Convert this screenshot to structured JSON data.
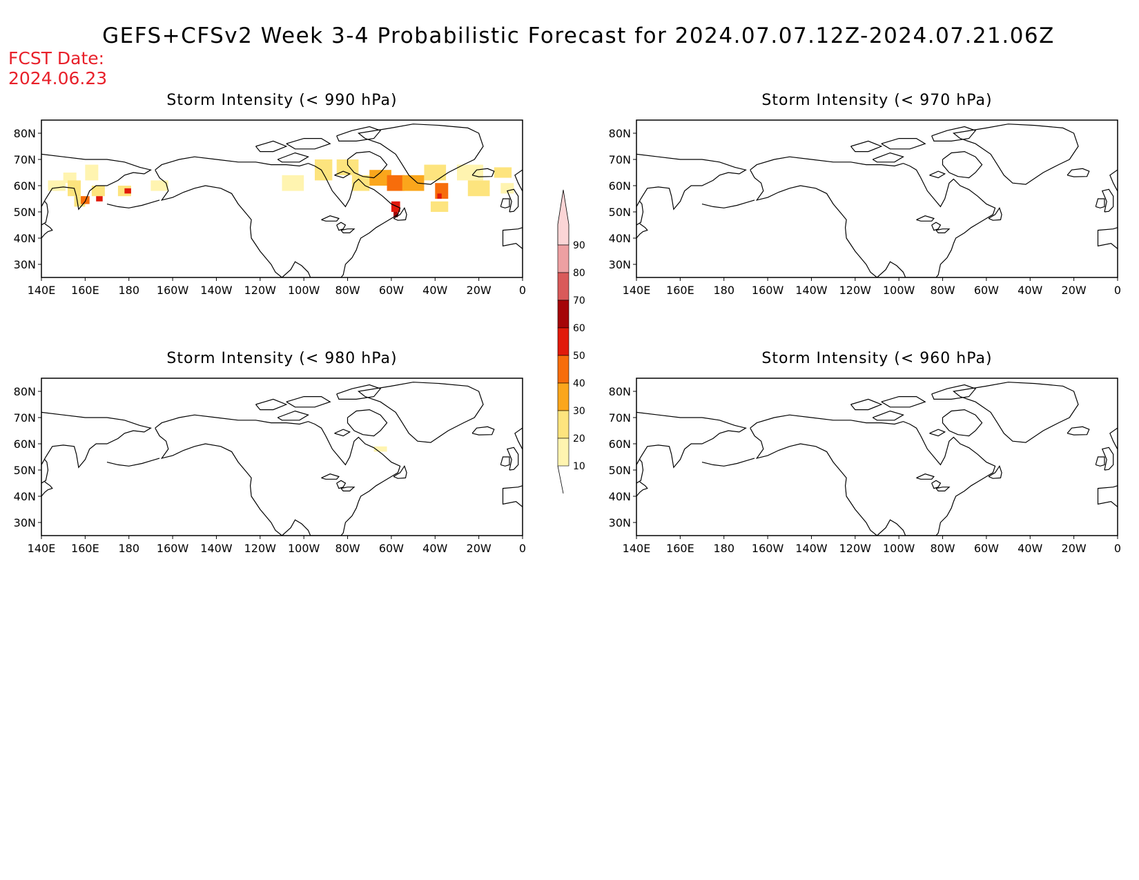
{
  "title": "GEFS+CFSv2 Week 3-4 Probabilistic Forecast for 2024.07.07.12Z-2024.07.21.06Z",
  "fcst_label": "FCST Date:",
  "fcst_date": "2024.06.23",
  "colors": {
    "fcst_text": "#e8202a",
    "map_line": "#000000",
    "scale": [
      "#fff4b0",
      "#fde47e",
      "#fba61c",
      "#f76d0b",
      "#e11a0a",
      "#a50508",
      "#d95a5a",
      "#eda0a2",
      "#fbd5d6"
    ]
  },
  "lon_ticks": [
    "140E",
    "160E",
    "180",
    "160W",
    "140W",
    "120W",
    "100W",
    "80W",
    "60W",
    "40W",
    "20W",
    "0"
  ],
  "lat_ticks": [
    "80N",
    "70N",
    "60N",
    "50N",
    "40N",
    "30N"
  ],
  "colorbar": {
    "levels": [
      "10",
      "20",
      "30",
      "40",
      "50",
      "60",
      "70",
      "80",
      "90"
    ]
  },
  "panels": [
    {
      "id": "990",
      "title": "Storm Intensity (< 990 hPa)",
      "has_shading": true,
      "shaded_cells": [
        {
          "lon": 143,
          "lat": 58,
          "dlon": 8,
          "dlat": 4,
          "level": 0
        },
        {
          "lon": 150,
          "lat": 61,
          "dlon": 6,
          "dlat": 4,
          "level": 0
        },
        {
          "lon": 152,
          "lat": 56,
          "dlon": 6,
          "dlat": 6,
          "level": 1
        },
        {
          "lon": 155,
          "lat": 52,
          "dlon": 5,
          "dlat": 4,
          "level": 1
        },
        {
          "lon": 158,
          "lat": 53,
          "dlon": 4,
          "dlat": 3,
          "level": 3
        },
        {
          "lon": 160,
          "lat": 62,
          "dlon": 6,
          "dlat": 6,
          "level": 0
        },
        {
          "lon": 163,
          "lat": 56,
          "dlon": 6,
          "dlat": 4,
          "level": 1
        },
        {
          "lon": 165,
          "lat": 54,
          "dlon": 3,
          "dlat": 2,
          "level": 4
        },
        {
          "lon": 175,
          "lat": 56,
          "dlon": 6,
          "dlat": 4,
          "level": 1
        },
        {
          "lon": 178,
          "lat": 57,
          "dlon": 3,
          "dlat": 2,
          "level": 4
        },
        {
          "lon": 190,
          "lat": 58,
          "dlon": 8,
          "dlat": 4,
          "level": 0
        },
        {
          "lon": 250,
          "lat": 58,
          "dlon": 10,
          "dlat": 6,
          "level": 0
        },
        {
          "lon": 265,
          "lat": 62,
          "dlon": 8,
          "dlat": 8,
          "level": 1
        },
        {
          "lon": 275,
          "lat": 64,
          "dlon": 10,
          "dlat": 6,
          "level": 1
        },
        {
          "lon": 282,
          "lat": 58,
          "dlon": 8,
          "dlat": 6,
          "level": 1
        },
        {
          "lon": 290,
          "lat": 60,
          "dlon": 10,
          "dlat": 6,
          "level": 2
        },
        {
          "lon": 298,
          "lat": 58,
          "dlon": 8,
          "dlat": 6,
          "level": 3
        },
        {
          "lon": 300,
          "lat": 50,
          "dlon": 4,
          "dlat": 4,
          "level": 4
        },
        {
          "lon": 301,
          "lat": 48,
          "dlon": 2,
          "dlat": 2,
          "level": 5
        },
        {
          "lon": 305,
          "lat": 58,
          "dlon": 10,
          "dlat": 6,
          "level": 2
        },
        {
          "lon": 315,
          "lat": 62,
          "dlon": 10,
          "dlat": 6,
          "level": 1
        },
        {
          "lon": 320,
          "lat": 55,
          "dlon": 6,
          "dlat": 6,
          "level": 3
        },
        {
          "lon": 321,
          "lat": 55,
          "dlon": 2,
          "dlat": 2,
          "level": 4
        },
        {
          "lon": 318,
          "lat": 50,
          "dlon": 8,
          "dlat": 4,
          "level": 1
        },
        {
          "lon": 330,
          "lat": 62,
          "dlon": 12,
          "dlat": 6,
          "level": 0
        },
        {
          "lon": 335,
          "lat": 56,
          "dlon": 10,
          "dlat": 6,
          "level": 1
        },
        {
          "lon": 347,
          "lat": 63,
          "dlon": 8,
          "dlat": 4,
          "level": 1
        },
        {
          "lon": 350,
          "lat": 57,
          "dlon": 6,
          "dlat": 4,
          "level": 0
        }
      ]
    },
    {
      "id": "970",
      "title": "Storm Intensity (< 970 hPa)",
      "has_shading": false,
      "shaded_cells": []
    },
    {
      "id": "980",
      "title": "Storm Intensity (< 980 hPa)",
      "has_shading": true,
      "shaded_cells": [
        {
          "lon": 292,
          "lat": 57,
          "dlon": 6,
          "dlat": 2,
          "level": 0
        }
      ]
    },
    {
      "id": "960",
      "title": "Storm Intensity (< 960 hPa)",
      "has_shading": false,
      "shaded_cells": []
    }
  ]
}
